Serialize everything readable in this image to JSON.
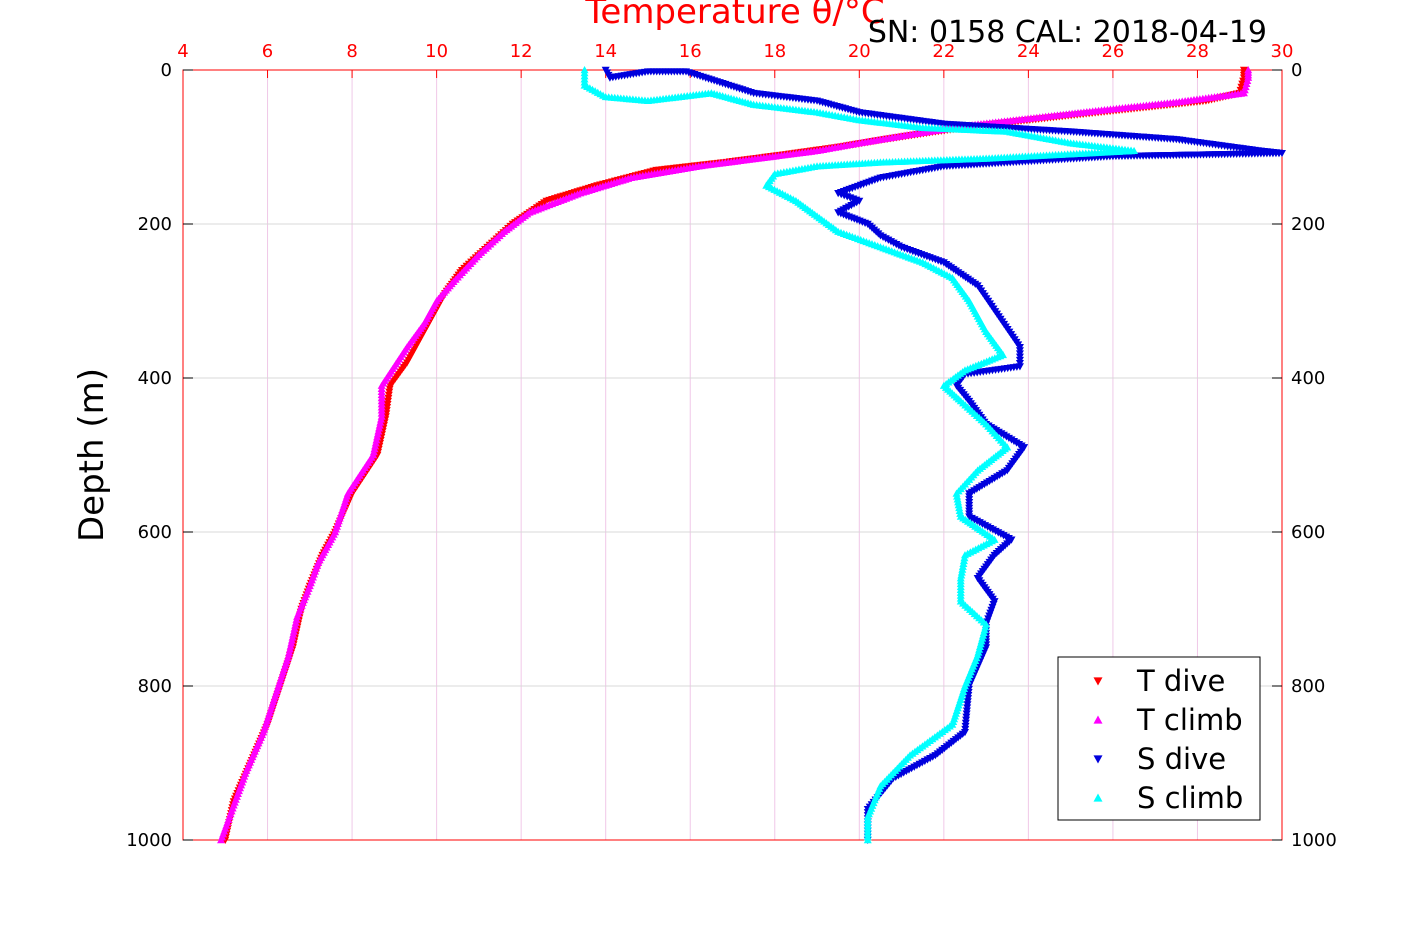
{
  "chart_data": {
    "type": "scatter",
    "title": "Temperature θ/°C",
    "subtitle": "SN: 0158  CAL: 2018-04-19",
    "xlabel": "Temperature θ/°C",
    "ylabel": "Depth (m)",
    "xlim": [
      4,
      30
    ],
    "ylim": [
      0,
      1000
    ],
    "y_reversed": true,
    "x_ticks": [
      "4",
      "6",
      "8",
      "10",
      "12",
      "14",
      "16",
      "18",
      "20",
      "22",
      "24",
      "26",
      "28",
      "30"
    ],
    "y_ticks": [
      "0",
      "200",
      "400",
      "600",
      "800",
      "1000"
    ],
    "grid": true,
    "legend_position": "bottom-right",
    "colors": {
      "t_dive": "#ff0000",
      "t_climb": "#ff00ff",
      "s_dive": "#0000dd",
      "s_climb": "#00ffff",
      "axis": "#ff0000",
      "grid": "#cccccc"
    },
    "series": [
      {
        "name": "T dive",
        "marker": "triangle-down",
        "color": "#ff0000",
        "points": [
          [
            29.1,
            0
          ],
          [
            29.1,
            10
          ],
          [
            29.0,
            30
          ],
          [
            28.2,
            40
          ],
          [
            26.5,
            50
          ],
          [
            24.8,
            60
          ],
          [
            23.2,
            70
          ],
          [
            21.8,
            80
          ],
          [
            20.6,
            90
          ],
          [
            19.5,
            100
          ],
          [
            18.2,
            110
          ],
          [
            16.8,
            120
          ],
          [
            15.2,
            130
          ],
          [
            13.8,
            150
          ],
          [
            12.6,
            170
          ],
          [
            11.8,
            200
          ],
          [
            11.2,
            230
          ],
          [
            10.6,
            260
          ],
          [
            10.2,
            290
          ],
          [
            9.9,
            320
          ],
          [
            9.6,
            350
          ],
          [
            9.3,
            380
          ],
          [
            8.9,
            410
          ],
          [
            8.8,
            450
          ],
          [
            8.6,
            500
          ],
          [
            8.0,
            550
          ],
          [
            7.6,
            600
          ],
          [
            7.3,
            630
          ],
          [
            7.0,
            670
          ],
          [
            6.8,
            700
          ],
          [
            6.6,
            750
          ],
          [
            6.3,
            800
          ],
          [
            6.0,
            850
          ],
          [
            5.6,
            900
          ],
          [
            5.2,
            950
          ],
          [
            5.0,
            1000
          ]
        ]
      },
      {
        "name": "T climb",
        "marker": "triangle-up",
        "color": "#ff00ff",
        "points": [
          [
            29.2,
            0
          ],
          [
            29.2,
            10
          ],
          [
            29.1,
            30
          ],
          [
            27.5,
            42
          ],
          [
            25.8,
            52
          ],
          [
            24.2,
            62
          ],
          [
            22.6,
            72
          ],
          [
            21.2,
            84
          ],
          [
            20.0,
            95
          ],
          [
            19.0,
            105
          ],
          [
            17.6,
            115
          ],
          [
            16.2,
            125
          ],
          [
            14.6,
            140
          ],
          [
            13.4,
            160
          ],
          [
            12.2,
            185
          ],
          [
            11.6,
            210
          ],
          [
            11.0,
            240
          ],
          [
            10.4,
            275
          ],
          [
            10.0,
            300
          ],
          [
            9.7,
            330
          ],
          [
            9.3,
            360
          ],
          [
            9.0,
            385
          ],
          [
            8.7,
            410
          ],
          [
            8.7,
            450
          ],
          [
            8.5,
            500
          ],
          [
            7.9,
            550
          ],
          [
            7.6,
            600
          ],
          [
            7.2,
            640
          ],
          [
            7.0,
            670
          ],
          [
            6.7,
            710
          ],
          [
            6.5,
            760
          ],
          [
            6.2,
            810
          ],
          [
            5.9,
            860
          ],
          [
            5.5,
            910
          ],
          [
            5.2,
            955
          ],
          [
            4.9,
            1000
          ]
        ]
      },
      {
        "name": "S dive",
        "marker": "triangle-down",
        "color": "#0000dd",
        "points": [
          [
            14.0,
            0
          ],
          [
            14.1,
            10
          ],
          [
            15.0,
            2
          ],
          [
            15.9,
            2
          ],
          [
            17.5,
            30
          ],
          [
            19.0,
            40
          ],
          [
            20.0,
            55
          ],
          [
            22.0,
            70
          ],
          [
            25.0,
            80
          ],
          [
            27.5,
            90
          ],
          [
            29.5,
            105
          ],
          [
            30.0,
            108
          ],
          [
            26.0,
            112
          ],
          [
            22.0,
            125
          ],
          [
            20.5,
            140
          ],
          [
            19.5,
            160
          ],
          [
            20.0,
            170
          ],
          [
            19.5,
            185
          ],
          [
            20.2,
            200
          ],
          [
            20.5,
            215
          ],
          [
            21.0,
            230
          ],
          [
            22.0,
            250
          ],
          [
            22.8,
            280
          ],
          [
            23.3,
            320
          ],
          [
            23.8,
            360
          ],
          [
            23.8,
            385
          ],
          [
            22.5,
            395
          ],
          [
            22.3,
            410
          ],
          [
            22.6,
            430
          ],
          [
            23.0,
            460
          ],
          [
            23.9,
            490
          ],
          [
            23.5,
            520
          ],
          [
            22.6,
            550
          ],
          [
            22.6,
            580
          ],
          [
            23.6,
            610
          ],
          [
            23.2,
            630
          ],
          [
            22.8,
            660
          ],
          [
            23.2,
            690
          ],
          [
            23.0,
            720
          ],
          [
            23.0,
            750
          ],
          [
            22.6,
            800
          ],
          [
            22.5,
            860
          ],
          [
            21.8,
            890
          ],
          [
            20.8,
            920
          ],
          [
            20.2,
            960
          ],
          [
            20.2,
            1000
          ]
        ]
      },
      {
        "name": "S climb",
        "marker": "triangle-up",
        "color": "#00ffff",
        "points": [
          [
            13.5,
            0
          ],
          [
            13.5,
            20
          ],
          [
            14.0,
            35
          ],
          [
            15.0,
            40
          ],
          [
            16.5,
            30
          ],
          [
            17.5,
            45
          ],
          [
            19.0,
            55
          ],
          [
            20.0,
            65
          ],
          [
            21.5,
            75
          ],
          [
            23.5,
            80
          ],
          [
            25.0,
            95
          ],
          [
            26.5,
            105
          ],
          [
            23.0,
            115
          ],
          [
            20.5,
            120
          ],
          [
            19.0,
            125
          ],
          [
            18.0,
            135
          ],
          [
            17.8,
            150
          ],
          [
            18.5,
            170
          ],
          [
            19.0,
            190
          ],
          [
            19.5,
            210
          ],
          [
            20.5,
            230
          ],
          [
            21.5,
            250
          ],
          [
            22.2,
            270
          ],
          [
            22.6,
            300
          ],
          [
            23.0,
            340
          ],
          [
            23.4,
            370
          ],
          [
            22.5,
            390
          ],
          [
            22.0,
            410
          ],
          [
            22.4,
            430
          ],
          [
            23.0,
            460
          ],
          [
            23.5,
            490
          ],
          [
            22.8,
            520
          ],
          [
            22.3,
            550
          ],
          [
            22.4,
            580
          ],
          [
            23.2,
            610
          ],
          [
            22.5,
            630
          ],
          [
            22.4,
            660
          ],
          [
            22.4,
            690
          ],
          [
            23.0,
            720
          ],
          [
            22.8,
            760
          ],
          [
            22.5,
            800
          ],
          [
            22.2,
            850
          ],
          [
            21.2,
            890
          ],
          [
            20.5,
            930
          ],
          [
            20.2,
            970
          ],
          [
            20.2,
            1000
          ]
        ]
      }
    ]
  }
}
